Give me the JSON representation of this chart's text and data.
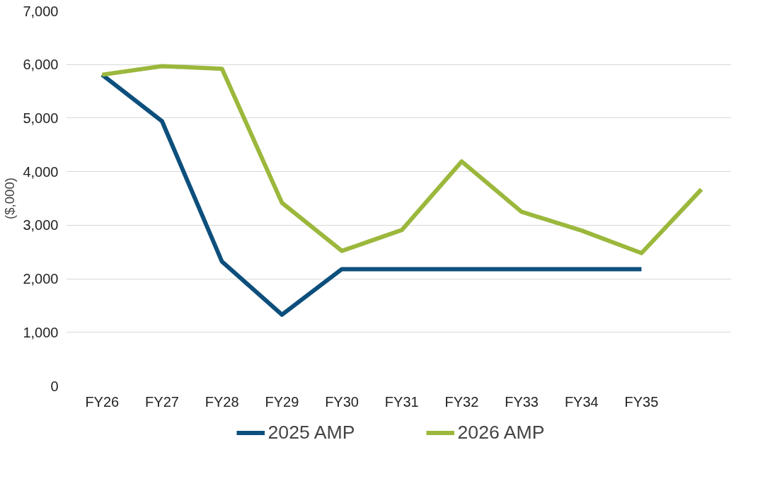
{
  "chart_data": {
    "type": "line",
    "ylabel": "($,000)",
    "categories": [
      "FY26",
      "FY27",
      "FY28",
      "FY29",
      "FY30",
      "FY31",
      "FY32",
      "FY33",
      "FY34",
      "FY35",
      null
    ],
    "series": [
      {
        "name": "2025 AMP",
        "color": "#0d4f7c",
        "values": [
          5810,
          4940,
          2320,
          1330,
          2180,
          2180,
          2180,
          2180,
          2180,
          2180,
          null
        ]
      },
      {
        "name": "2026 AMP",
        "color": "#9bb83c",
        "values": [
          5810,
          5970,
          5920,
          3420,
          2520,
          2910,
          4190,
          3250,
          2900,
          2480,
          3670
        ]
      }
    ],
    "ylim": [
      0,
      7000
    ],
    "yticks": [
      {
        "value": 0,
        "label": "0"
      },
      {
        "value": 1000,
        "label": "1,000"
      },
      {
        "value": 2000,
        "label": "2,000"
      },
      {
        "value": 3000,
        "label": "3,000"
      },
      {
        "value": 4000,
        "label": "4,000"
      },
      {
        "value": 5000,
        "label": "5,000"
      },
      {
        "value": 6000,
        "label": "6,000"
      },
      {
        "value": 7000,
        "label": "7,000"
      }
    ],
    "grid": "y",
    "legend": "bottom",
    "marker": "none",
    "line_style": "solid"
  }
}
